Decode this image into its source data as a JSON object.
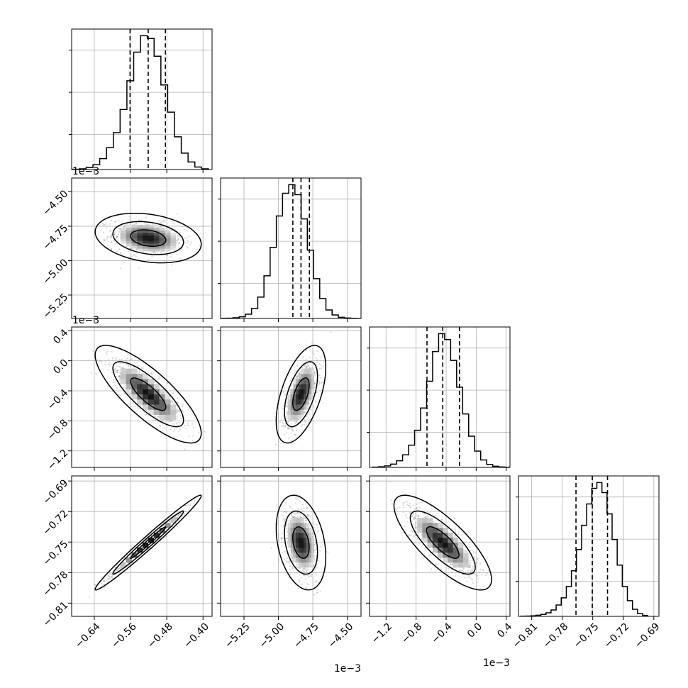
{
  "chart_data": {
    "type": "corner",
    "grid": true,
    "colors": {
      "axes": "#000000",
      "grid": "#b0b0b0",
      "hist": "#000000",
      "scatter": "#808080",
      "density_max": "#000000"
    },
    "parameters": [
      {
        "id": "p1",
        "range": [
          -0.69,
          -0.38
        ],
        "ticks": [
          -0.64,
          -0.56,
          -0.48,
          -0.4
        ],
        "tick_labels": [
          "−0.64",
          "−0.56",
          "−0.48",
          "−0.40"
        ],
        "offset_label": "",
        "quantiles": [
          -0.561,
          -0.521,
          -0.483
        ],
        "hist_centers": [
          -0.6805,
          -0.6655,
          -0.6505,
          -0.6355,
          -0.6205,
          -0.6055,
          -0.5905,
          -0.5755,
          -0.5605,
          -0.5455,
          -0.5305,
          -0.5155,
          -0.5005,
          -0.4855,
          -0.4705,
          -0.4555,
          -0.4405,
          -0.4255,
          -0.4105,
          -0.3955
        ],
        "hist_counts": [
          2,
          5,
          15,
          35,
          80,
          160,
          270,
          440,
          650,
          860,
          980,
          960,
          830,
          620,
          420,
          240,
          120,
          55,
          18,
          5
        ]
      },
      {
        "id": "p2",
        "range": [
          -5.42,
          -4.4
        ],
        "ticks": [
          -5.25,
          -5.0,
          -4.75,
          -4.5
        ],
        "tick_labels": [
          "−5.25",
          "−5.00",
          "−4.75",
          "−4.50"
        ],
        "offset_label": "1e−3",
        "quantiles": [
          -4.895,
          -4.836,
          -4.775
        ],
        "hist_centers": [
          -5.3975,
          -5.3525,
          -5.3075,
          -5.2625,
          -5.2175,
          -5.1725,
          -5.1275,
          -5.0825,
          -5.0375,
          -4.9925,
          -4.9475,
          -4.9025,
          -4.8575,
          -4.8125,
          -4.7675,
          -4.7225,
          -4.6775,
          -4.6325,
          -4.5875,
          -4.5425,
          -4.4975,
          -4.4525,
          -4.4075
        ],
        "hist_counts": [
          1,
          2,
          5,
          12,
          30,
          70,
          150,
          300,
          500,
          720,
          880,
          940,
          870,
          700,
          480,
          280,
          140,
          60,
          25,
          8,
          3,
          1,
          0
        ]
      },
      {
        "id": "p3",
        "range": [
          -1.42,
          0.45
        ],
        "ticks": [
          -1.2,
          -0.8,
          -0.4,
          0.0,
          0.4
        ],
        "tick_labels": [
          "−1.2",
          "−0.8",
          "−0.4",
          "0.0",
          "0.4"
        ],
        "offset_label": "1e−3",
        "quantiles": [
          -0.655,
          -0.445,
          -0.222
        ],
        "hist_centers": [
          -1.34,
          -1.26,
          -1.18,
          -1.1,
          -1.02,
          -0.94,
          -0.86,
          -0.78,
          -0.7,
          -0.62,
          -0.54,
          -0.46,
          -0.38,
          -0.3,
          -0.22,
          -0.14,
          -0.06,
          0.02,
          0.1,
          0.18,
          0.26,
          0.34,
          0.42
        ],
        "hist_counts": [
          2,
          4,
          10,
          22,
          45,
          85,
          150,
          250,
          400,
          580,
          780,
          900,
          860,
          720,
          540,
          360,
          210,
          110,
          50,
          20,
          8,
          3,
          1
        ]
      },
      {
        "id": "p4",
        "range": [
          -0.823,
          -0.685
        ],
        "ticks": [
          -0.81,
          -0.78,
          -0.75,
          -0.72,
          -0.69
        ],
        "tick_labels": [
          "−0.81",
          "−0.78",
          "−0.75",
          "−0.72",
          "−0.69"
        ],
        "offset_label": "",
        "quantiles": [
          -0.7665,
          -0.7505,
          -0.7355
        ],
        "hist_centers": [
          -0.8185,
          -0.8135,
          -0.8085,
          -0.8035,
          -0.7985,
          -0.7935,
          -0.7885,
          -0.7835,
          -0.7785,
          -0.7735,
          -0.7685,
          -0.7635,
          -0.7585,
          -0.7535,
          -0.7485,
          -0.7435,
          -0.7385,
          -0.7335,
          -0.7285,
          -0.7235,
          -0.7185,
          -0.7135,
          -0.7085,
          -0.7035,
          -0.6985
        ],
        "hist_counts": [
          1,
          2,
          4,
          8,
          14,
          25,
          45,
          80,
          130,
          210,
          320,
          470,
          640,
          790,
          900,
          940,
          870,
          720,
          540,
          360,
          210,
          110,
          50,
          20,
          7
        ]
      }
    ],
    "correlations": [
      [
        1.0,
        -0.25,
        -0.8,
        0.985
      ],
      [
        -0.25,
        1.0,
        0.55,
        -0.3
      ],
      [
        -0.8,
        0.55,
        1.0,
        -0.78
      ],
      [
        0.985,
        -0.3,
        -0.78,
        1.0
      ]
    ],
    "contour_levels": [
      0.393,
      0.865,
      0.989
    ]
  }
}
